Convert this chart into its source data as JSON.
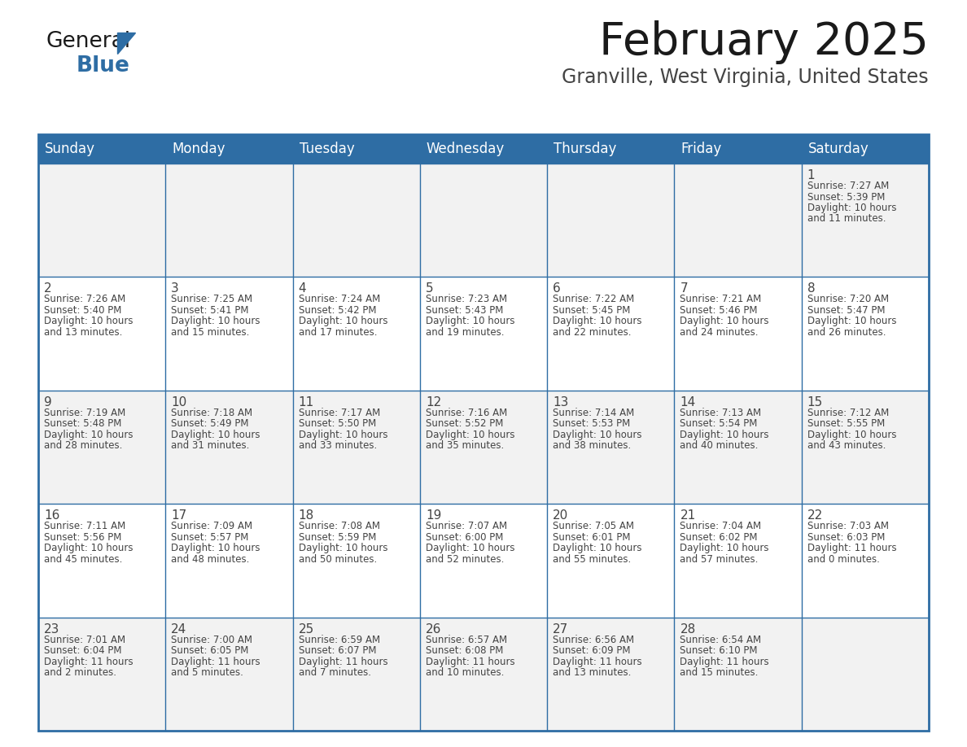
{
  "title": "February 2025",
  "subtitle": "Granville, West Virginia, United States",
  "header_bg": "#2E6DA4",
  "header_text": "#FFFFFF",
  "cell_bg_odd": "#F2F2F2",
  "cell_bg_even": "#FFFFFF",
  "border_color": "#2E6DA4",
  "text_color": "#444444",
  "day_headers": [
    "Sunday",
    "Monday",
    "Tuesday",
    "Wednesday",
    "Thursday",
    "Friday",
    "Saturday"
  ],
  "days": [
    {
      "day": 1,
      "row": 0,
      "col": 6,
      "sunrise": "7:27 AM",
      "sunset": "5:39 PM",
      "daylight_h": "10 hours",
      "daylight_m": "and 11 minutes."
    },
    {
      "day": 2,
      "row": 1,
      "col": 0,
      "sunrise": "7:26 AM",
      "sunset": "5:40 PM",
      "daylight_h": "10 hours",
      "daylight_m": "and 13 minutes."
    },
    {
      "day": 3,
      "row": 1,
      "col": 1,
      "sunrise": "7:25 AM",
      "sunset": "5:41 PM",
      "daylight_h": "10 hours",
      "daylight_m": "and 15 minutes."
    },
    {
      "day": 4,
      "row": 1,
      "col": 2,
      "sunrise": "7:24 AM",
      "sunset": "5:42 PM",
      "daylight_h": "10 hours",
      "daylight_m": "and 17 minutes."
    },
    {
      "day": 5,
      "row": 1,
      "col": 3,
      "sunrise": "7:23 AM",
      "sunset": "5:43 PM",
      "daylight_h": "10 hours",
      "daylight_m": "and 19 minutes."
    },
    {
      "day": 6,
      "row": 1,
      "col": 4,
      "sunrise": "7:22 AM",
      "sunset": "5:45 PM",
      "daylight_h": "10 hours",
      "daylight_m": "and 22 minutes."
    },
    {
      "day": 7,
      "row": 1,
      "col": 5,
      "sunrise": "7:21 AM",
      "sunset": "5:46 PM",
      "daylight_h": "10 hours",
      "daylight_m": "and 24 minutes."
    },
    {
      "day": 8,
      "row": 1,
      "col": 6,
      "sunrise": "7:20 AM",
      "sunset": "5:47 PM",
      "daylight_h": "10 hours",
      "daylight_m": "and 26 minutes."
    },
    {
      "day": 9,
      "row": 2,
      "col": 0,
      "sunrise": "7:19 AM",
      "sunset": "5:48 PM",
      "daylight_h": "10 hours",
      "daylight_m": "and 28 minutes."
    },
    {
      "day": 10,
      "row": 2,
      "col": 1,
      "sunrise": "7:18 AM",
      "sunset": "5:49 PM",
      "daylight_h": "10 hours",
      "daylight_m": "and 31 minutes."
    },
    {
      "day": 11,
      "row": 2,
      "col": 2,
      "sunrise": "7:17 AM",
      "sunset": "5:50 PM",
      "daylight_h": "10 hours",
      "daylight_m": "and 33 minutes."
    },
    {
      "day": 12,
      "row": 2,
      "col": 3,
      "sunrise": "7:16 AM",
      "sunset": "5:52 PM",
      "daylight_h": "10 hours",
      "daylight_m": "and 35 minutes."
    },
    {
      "day": 13,
      "row": 2,
      "col": 4,
      "sunrise": "7:14 AM",
      "sunset": "5:53 PM",
      "daylight_h": "10 hours",
      "daylight_m": "and 38 minutes."
    },
    {
      "day": 14,
      "row": 2,
      "col": 5,
      "sunrise": "7:13 AM",
      "sunset": "5:54 PM",
      "daylight_h": "10 hours",
      "daylight_m": "and 40 minutes."
    },
    {
      "day": 15,
      "row": 2,
      "col": 6,
      "sunrise": "7:12 AM",
      "sunset": "5:55 PM",
      "daylight_h": "10 hours",
      "daylight_m": "and 43 minutes."
    },
    {
      "day": 16,
      "row": 3,
      "col": 0,
      "sunrise": "7:11 AM",
      "sunset": "5:56 PM",
      "daylight_h": "10 hours",
      "daylight_m": "and 45 minutes."
    },
    {
      "day": 17,
      "row": 3,
      "col": 1,
      "sunrise": "7:09 AM",
      "sunset": "5:57 PM",
      "daylight_h": "10 hours",
      "daylight_m": "and 48 minutes."
    },
    {
      "day": 18,
      "row": 3,
      "col": 2,
      "sunrise": "7:08 AM",
      "sunset": "5:59 PM",
      "daylight_h": "10 hours",
      "daylight_m": "and 50 minutes."
    },
    {
      "day": 19,
      "row": 3,
      "col": 3,
      "sunrise": "7:07 AM",
      "sunset": "6:00 PM",
      "daylight_h": "10 hours",
      "daylight_m": "and 52 minutes."
    },
    {
      "day": 20,
      "row": 3,
      "col": 4,
      "sunrise": "7:05 AM",
      "sunset": "6:01 PM",
      "daylight_h": "10 hours",
      "daylight_m": "and 55 minutes."
    },
    {
      "day": 21,
      "row": 3,
      "col": 5,
      "sunrise": "7:04 AM",
      "sunset": "6:02 PM",
      "daylight_h": "10 hours",
      "daylight_m": "and 57 minutes."
    },
    {
      "day": 22,
      "row": 3,
      "col": 6,
      "sunrise": "7:03 AM",
      "sunset": "6:03 PM",
      "daylight_h": "11 hours",
      "daylight_m": "and 0 minutes."
    },
    {
      "day": 23,
      "row": 4,
      "col": 0,
      "sunrise": "7:01 AM",
      "sunset": "6:04 PM",
      "daylight_h": "11 hours",
      "daylight_m": "and 2 minutes."
    },
    {
      "day": 24,
      "row": 4,
      "col": 1,
      "sunrise": "7:00 AM",
      "sunset": "6:05 PM",
      "daylight_h": "11 hours",
      "daylight_m": "and 5 minutes."
    },
    {
      "day": 25,
      "row": 4,
      "col": 2,
      "sunrise": "6:59 AM",
      "sunset": "6:07 PM",
      "daylight_h": "11 hours",
      "daylight_m": "and 7 minutes."
    },
    {
      "day": 26,
      "row": 4,
      "col": 3,
      "sunrise": "6:57 AM",
      "sunset": "6:08 PM",
      "daylight_h": "11 hours",
      "daylight_m": "and 10 minutes."
    },
    {
      "day": 27,
      "row": 4,
      "col": 4,
      "sunrise": "6:56 AM",
      "sunset": "6:09 PM",
      "daylight_h": "11 hours",
      "daylight_m": "and 13 minutes."
    },
    {
      "day": 28,
      "row": 4,
      "col": 5,
      "sunrise": "6:54 AM",
      "sunset": "6:10 PM",
      "daylight_h": "11 hours",
      "daylight_m": "and 15 minutes."
    }
  ],
  "logo_general_color": "#1a1a1a",
  "logo_blue_color": "#2E6DA4",
  "logo_triangle_color": "#2E6DA4",
  "title_fontsize": 40,
  "subtitle_fontsize": 17,
  "header_fontsize": 12,
  "daynum_fontsize": 11,
  "cell_text_fontsize": 8.5
}
